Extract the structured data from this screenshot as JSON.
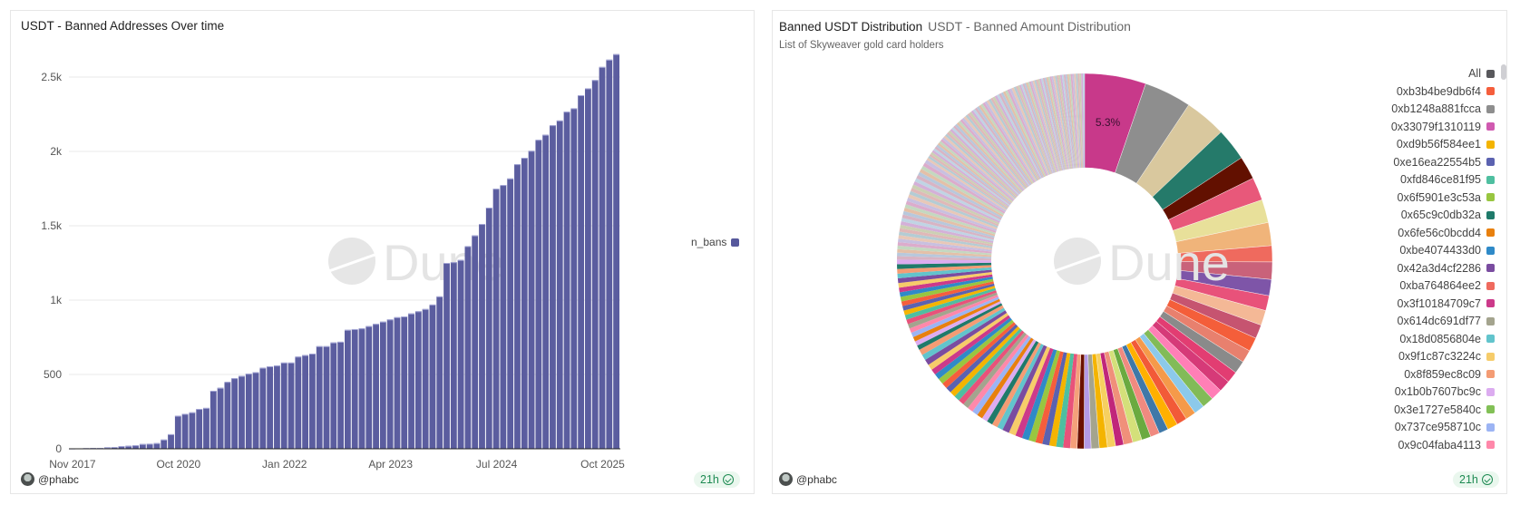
{
  "left_panel": {
    "title": "USDT - Banned Addresses Over time",
    "author": "@phabc",
    "refresh_badge": "21h",
    "watermark": "Dune",
    "legend": [
      {
        "label": "n_bans",
        "color": "#56589c"
      }
    ]
  },
  "right_panel": {
    "title": "Banned USDT Distribution",
    "subtitle": "USDT - Banned Amount Distribution",
    "description": "List of Skyweaver gold card holders",
    "author": "@phabc",
    "refresh_badge": "21h",
    "watermark": "Dune",
    "legend": [
      {
        "label": "All",
        "color": "#58585c"
      },
      {
        "label": "0xb3b4be9db6f4",
        "color": "#f55e3c"
      },
      {
        "label": "0xb1248a881fcca",
        "color": "#8e8e8e"
      },
      {
        "label": "0x33079f1310119",
        "color": "#d05ab0"
      },
      {
        "label": "0xd9b56f584ee1",
        "color": "#f4b400"
      },
      {
        "label": "0xe16ea22554b5",
        "color": "#5b62b0"
      },
      {
        "label": "0xfd846ce81f95",
        "color": "#4fbfa0"
      },
      {
        "label": "0x6f5901e3c53a",
        "color": "#98c640"
      },
      {
        "label": "0x65c9c0db32a",
        "color": "#1f7a6a"
      },
      {
        "label": "0x6fe56c0bcdd4",
        "color": "#e8800e"
      },
      {
        "label": "0xbe4074433d0",
        "color": "#2f8ac8"
      },
      {
        "label": "0x42a3d4cf2286",
        "color": "#7a4ca0"
      },
      {
        "label": "0xba764864ee2",
        "color": "#ef6a5e"
      },
      {
        "label": "0x3f10184709c7",
        "color": "#cc3a8a"
      },
      {
        "label": "0x614dc691df77",
        "color": "#a4a48e"
      },
      {
        "label": "0x18d0856804e",
        "color": "#62c4cc"
      },
      {
        "label": "0x9f1c87c3224c",
        "color": "#f6cc6a"
      },
      {
        "label": "0x8f859ec8c09",
        "color": "#f49c74"
      },
      {
        "label": "0x1b0b7607bc9c",
        "color": "#dcacf0"
      },
      {
        "label": "0x3e1727e5840c",
        "color": "#82c056"
      },
      {
        "label": "0x737ce958710c",
        "color": "#9cb4f4"
      },
      {
        "label": "0x9c04faba4113",
        "color": "#ff88aa"
      }
    ]
  },
  "chart_data": [
    {
      "type": "bar",
      "title": "USDT - Banned Addresses Over time",
      "series": [
        {
          "name": "n_bans",
          "color": "#56589c",
          "values": [
            2,
            3,
            4,
            5,
            6,
            10,
            12,
            18,
            20,
            24,
            32,
            34,
            38,
            62,
            98,
            222,
            235,
            245,
            268,
            275,
            390,
            410,
            450,
            475,
            490,
            505,
            515,
            545,
            555,
            560,
            580,
            580,
            620,
            630,
            640,
            690,
            690,
            715,
            720,
            800,
            805,
            810,
            825,
            840,
            855,
            870,
            885,
            890,
            910,
            925,
            940,
            970,
            1025,
            1250,
            1255,
            1270,
            1363,
            1435,
            1512,
            1622,
            1749,
            1774,
            1818,
            1914,
            1957,
            2004,
            2078,
            2112,
            2176,
            2208,
            2267,
            2290,
            2378,
            2424,
            2480,
            2568,
            2617,
            2654
          ]
        }
      ],
      "x_tick_labels": [
        {
          "label": "Nov 2017",
          "bar": 0
        },
        {
          "label": "Oct 2020",
          "bar": 15
        },
        {
          "label": "Jan 2022",
          "bar": 30
        },
        {
          "label": "Apr 2023",
          "bar": 45
        },
        {
          "label": "Jul 2024",
          "bar": 60
        },
        {
          "label": "Oct 2025",
          "bar": 75
        }
      ],
      "y_ticks": [
        {
          "v": 0,
          "label": "0"
        },
        {
          "v": 500,
          "label": "500"
        },
        {
          "v": 1000,
          "label": "1k"
        },
        {
          "v": 1500,
          "label": "1.5k"
        },
        {
          "v": 2000,
          "label": "2k"
        },
        {
          "v": 2500,
          "label": "2.5k"
        }
      ],
      "ylim": [
        0,
        2750
      ],
      "grid": true,
      "legend_position": "right"
    },
    {
      "type": "pie",
      "donut": true,
      "title": "Banned USDT Distribution",
      "unit": "percent",
      "data_label": "5.3%",
      "major_slices": [
        {
          "value": 5.3,
          "color": "#c8398a"
        },
        {
          "value": 4.1,
          "color": "#8e8e8e"
        },
        {
          "value": 3.6,
          "color": "#d9c89e"
        },
        {
          "value": 2.8,
          "color": "#257a6a"
        },
        {
          "value": 2.0,
          "color": "#621000"
        },
        {
          "value": 2.0,
          "color": "#e8587a"
        },
        {
          "value": 2.0,
          "color": "#e8e09a"
        },
        {
          "value": 2.0,
          "color": "#f0b47a"
        },
        {
          "value": 1.4,
          "color": "#ef6a5e"
        },
        {
          "value": 1.5,
          "color": "#c9627a"
        },
        {
          "value": 1.4,
          "color": "#7e55a8"
        },
        {
          "value": 1.3,
          "color": "#e8527a"
        },
        {
          "value": 1.3,
          "color": "#f4b896"
        },
        {
          "value": 1.2,
          "color": "#c65470"
        },
        {
          "value": 1.2,
          "color": "#f45e3a"
        },
        {
          "value": 1.1,
          "color": "#e8806e"
        },
        {
          "value": 1.1,
          "color": "#8a8a8a"
        },
        {
          "value": 1.0,
          "color": "#e23d72"
        },
        {
          "value": 1.0,
          "color": "#d63a78"
        },
        {
          "value": 1.0,
          "color": "#ff7fb6"
        },
        {
          "value": 1.0,
          "color": "#82bb58"
        },
        {
          "value": 0.9,
          "color": "#8cc9ea"
        },
        {
          "value": 0.9,
          "color": "#f59a4a"
        },
        {
          "value": 0.9,
          "color": "#f25a38"
        },
        {
          "value": 0.9,
          "color": "#ffb000"
        },
        {
          "value": 0.8,
          "color": "#3f78a8"
        },
        {
          "value": 0.8,
          "color": "#f08a80"
        },
        {
          "value": 0.8,
          "color": "#6aaa40"
        },
        {
          "value": 0.8,
          "color": "#d4e07a"
        },
        {
          "value": 0.8,
          "color": "#f0907a"
        },
        {
          "value": 0.7,
          "color": "#c0267a"
        },
        {
          "value": 0.7,
          "color": "#f6d060"
        },
        {
          "value": 0.7,
          "color": "#f4b400"
        },
        {
          "value": 0.7,
          "color": "#a4a48e"
        },
        {
          "value": 0.6,
          "color": "#b49ae6"
        },
        {
          "value": 0.6,
          "color": "#6a1000"
        },
        {
          "value": 0.6,
          "color": "#f4a07a"
        }
      ],
      "minor_slices": [
        0.6,
        0.6,
        0.6,
        0.6,
        0.6,
        0.6,
        0.6,
        0.6,
        0.6,
        0.6,
        0.5,
        0.5,
        0.5,
        0.5,
        0.5,
        0.5,
        0.5,
        0.5,
        0.5,
        0.5,
        0.5,
        0.5,
        0.5,
        0.5,
        0.5,
        0.5,
        0.5,
        0.5,
        0.5,
        0.5,
        0.4,
        0.4,
        0.4,
        0.4,
        0.4,
        0.4,
        0.4,
        0.4,
        0.4,
        0.4,
        0.4,
        0.4,
        0.4,
        0.4,
        0.4,
        0.4,
        0.4,
        0.4,
        0.4,
        0.4
      ],
      "minor_colors": [
        "#e8527a",
        "#4fbfa0",
        "#f4b400",
        "#5b62b0",
        "#f55e3c",
        "#98c640",
        "#2f8ac8",
        "#cc3a8a",
        "#f6cc6a",
        "#7a4ca0",
        "#62c4cc",
        "#f49c74",
        "#1f7a6a",
        "#dcacf0",
        "#e8800e",
        "#9cb4f4",
        "#ff88aa",
        "#a4a48e"
      ],
      "tail_slices": [
        0.3,
        0.3,
        0.3,
        0.3,
        0.3,
        0.3,
        0.3,
        0.3,
        0.3,
        0.3,
        0.3,
        0.3,
        0.3,
        0.3,
        0.3,
        0.3,
        0.3,
        0.3,
        0.3,
        0.3,
        0.3,
        0.3,
        0.3,
        0.3,
        0.3,
        0.3,
        0.3,
        0.3,
        0.3,
        0.3,
        0.2,
        0.2,
        0.2,
        0.2,
        0.2,
        0.2,
        0.2,
        0.2,
        0.2,
        0.2,
        0.2,
        0.2,
        0.2,
        0.2,
        0.2,
        0.2,
        0.2,
        0.2,
        0.2,
        0.2,
        0.2,
        0.2,
        0.2,
        0.2,
        0.2,
        0.2,
        0.2,
        0.2,
        0.2,
        0.2,
        0.2,
        0.2,
        0.2,
        0.2,
        0.2,
        0.2,
        0.2,
        0.2,
        0.2,
        0.2,
        0.2,
        0.2,
        0.2,
        0.2,
        0.2,
        0.2,
        0.2,
        0.2,
        0.2,
        0.2,
        0.15,
        0.15,
        0.15,
        0.15,
        0.15,
        0.15,
        0.15,
        0.15,
        0.15,
        0.15,
        0.15,
        0.15,
        0.15,
        0.15,
        0.15,
        0.15,
        0.15,
        0.15,
        0.15,
        0.15,
        0.15,
        0.15,
        0.15,
        0.15,
        0.15,
        0.15,
        0.15,
        0.15,
        0.15,
        0.15,
        0.15,
        0.15,
        0.15,
        0.15,
        0.15,
        0.15,
        0.15,
        0.15,
        0.15,
        0.15
      ],
      "tail_colors": [
        "#d8b4c4",
        "#b8c8dc",
        "#e4c0a8",
        "#c4d8c0",
        "#dcaccc",
        "#c8c0e0",
        "#e8c8b8",
        "#b4ccd4",
        "#e0b8b8",
        "#ccd0b4",
        "#d4b0d8",
        "#c0d4e4"
      ],
      "legend_position": "right"
    }
  ]
}
